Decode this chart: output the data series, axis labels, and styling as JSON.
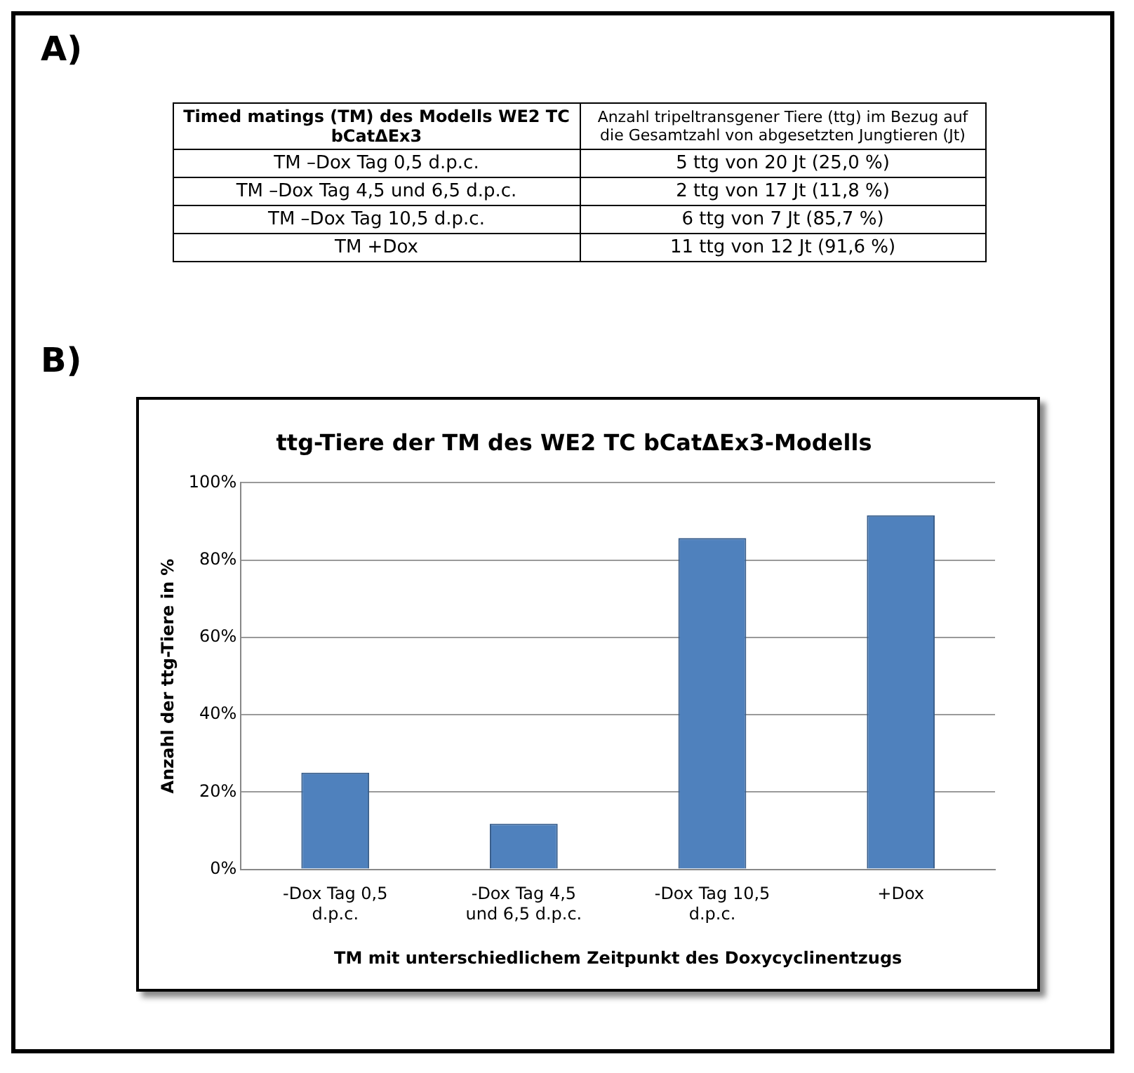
{
  "chart_data": {
    "type": "bar",
    "title": "ttg-Tiere der TM des WE2 TC bCatΔEx3-Modells",
    "xlabel": "TM mit unterschiedlichem Zeitpunkt des Doxycyclinentzugs",
    "ylabel": "Anzahl der ttg-Tiere in %",
    "categories": [
      "-Dox Tag 0,5 d.p.c.",
      "-Dox Tag 4,5 und 6,5 d.p.c.",
      "-Dox Tag 10,5 d.p.c.",
      "+Dox"
    ],
    "values": [
      25.0,
      11.8,
      85.7,
      91.6
    ],
    "color": "#4f81bd",
    "ylim": [
      0,
      100
    ],
    "yticks": [
      {
        "value": 0,
        "label": "0%"
      },
      {
        "value": 20,
        "label": "20%"
      },
      {
        "value": 40,
        "label": "40%"
      },
      {
        "value": 60,
        "label": "60%"
      },
      {
        "value": 80,
        "label": "80%"
      },
      {
        "value": 100,
        "label": "100%"
      }
    ],
    "grid": "y",
    "annotations": [
      "A)",
      "B)",
      "Timed matings (TM) des Modells WE2 TC bCatΔEx3",
      "Anzahl tripeltransgener Tiere (ttg) im Bezug auf die Gesamtzahl von abgesetzten Jungtieren (Jt)",
      "TM –Dox Tag 0,5 d.p.c.",
      "5 ttg von 20 Jt (25,0 %)",
      "TM –Dox Tag 4,5 und 6,5 d.p.c.",
      "2 ttg von 17 Jt (11,8 %)",
      "TM –Dox Tag 10,5 d.p.c.",
      "6 ttg von 7 Jt (85,7 %)",
      "TM +Dox",
      "11 ttg von 12 Jt (91,6 %)"
    ]
  }
}
